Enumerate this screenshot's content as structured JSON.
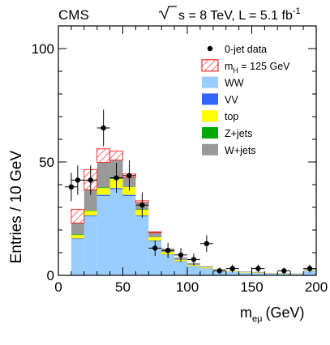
{
  "header": {
    "experiment": "CMS",
    "energy": "= 8 TeV, L = 5.1 fb",
    "energy_sup": "-1"
  },
  "chart_data": {
    "type": "bar",
    "stacked": true,
    "xlabel": "m",
    "xlabel_sub": "eμ",
    "xlabel_unit": "(GeV)",
    "ylabel": "Entries / 10 GeV",
    "xlim": [
      0,
      200
    ],
    "ylim": [
      0,
      110
    ],
    "x_ticks": [
      0,
      50,
      100,
      150,
      200
    ],
    "y_ticks": [
      0,
      50,
      100
    ],
    "bin_width": 10,
    "bin_low_edges": [
      10,
      20,
      30,
      40,
      50,
      60,
      70,
      80,
      90,
      100,
      110,
      120,
      130,
      140,
      150,
      160,
      170,
      180,
      190
    ],
    "legend_position": "top-right",
    "series": [
      {
        "name": "WW",
        "color": "#99ccff",
        "values": [
          16,
          26,
          35,
          38,
          35,
          26,
          15,
          9,
          6,
          4,
          3,
          2,
          1.5,
          1.2,
          1,
          0.8,
          0.6,
          0.5,
          2
        ]
      },
      {
        "name": "VV",
        "color": "#3366ff",
        "values": [
          0.3,
          0.4,
          0.5,
          0.5,
          0.5,
          0.4,
          0.3,
          0.2,
          0.2,
          0.1,
          0.1,
          0.1,
          0,
          0,
          0,
          0,
          0,
          0,
          0
        ]
      },
      {
        "name": "top",
        "color": "#ffff00",
        "values": [
          1.5,
          2,
          3,
          4,
          3.5,
          2.5,
          1.5,
          1,
          0.6,
          0.5,
          0.4,
          0.3,
          0.2,
          0.2,
          0.2,
          0.1,
          0.1,
          0.1,
          0.3
        ]
      },
      {
        "name": "Z+jets",
        "color": "#00aa00",
        "values": [
          0.3,
          0.3,
          0.3,
          0.3,
          0.2,
          0.2,
          0.1,
          0.1,
          0.1,
          0,
          0,
          0,
          0,
          0,
          0,
          0,
          0,
          0,
          0
        ]
      },
      {
        "name": "W+jets",
        "color": "#999999",
        "values": [
          5,
          9,
          11,
          8,
          4,
          3,
          2,
          1.5,
          1,
          0.8,
          0.5,
          0.4,
          0.3,
          0.3,
          0.3,
          0.2,
          0.2,
          0.2,
          0.4
        ]
      },
      {
        "name": "m_H = 125 GeV",
        "color": "#ff0000",
        "hatched": true,
        "values": [
          6,
          9,
          6,
          4,
          1.5,
          0.8,
          0.3,
          0,
          0,
          0,
          0,
          0,
          0,
          0,
          0,
          0,
          0,
          0,
          0
        ]
      }
    ],
    "data": {
      "name": "0-jet data",
      "x": [
        10,
        15,
        25,
        35,
        45,
        55,
        65,
        75,
        85,
        95,
        105,
        115,
        125,
        135,
        155,
        175,
        195
      ],
      "y": [
        39,
        42,
        42,
        65,
        43,
        44,
        31,
        12,
        11,
        9,
        7,
        14,
        2,
        3,
        3,
        2,
        3
      ]
    }
  },
  "legend": {
    "items": [
      {
        "label": "0-jet data",
        "kind": "marker",
        "color": "#000000"
      },
      {
        "label": "m",
        "sub": "H",
        "suffix": " = 125 GeV",
        "kind": "hatch",
        "color": "#ff0000"
      },
      {
        "label": "WW",
        "kind": "box",
        "color": "#99ccff"
      },
      {
        "label": "VV",
        "kind": "box",
        "color": "#3366ff"
      },
      {
        "label": "top",
        "kind": "box",
        "color": "#ffff00"
      },
      {
        "label": "Z+jets",
        "kind": "box",
        "color": "#00aa00"
      },
      {
        "label": "W+jets",
        "kind": "box",
        "color": "#999999"
      }
    ]
  }
}
